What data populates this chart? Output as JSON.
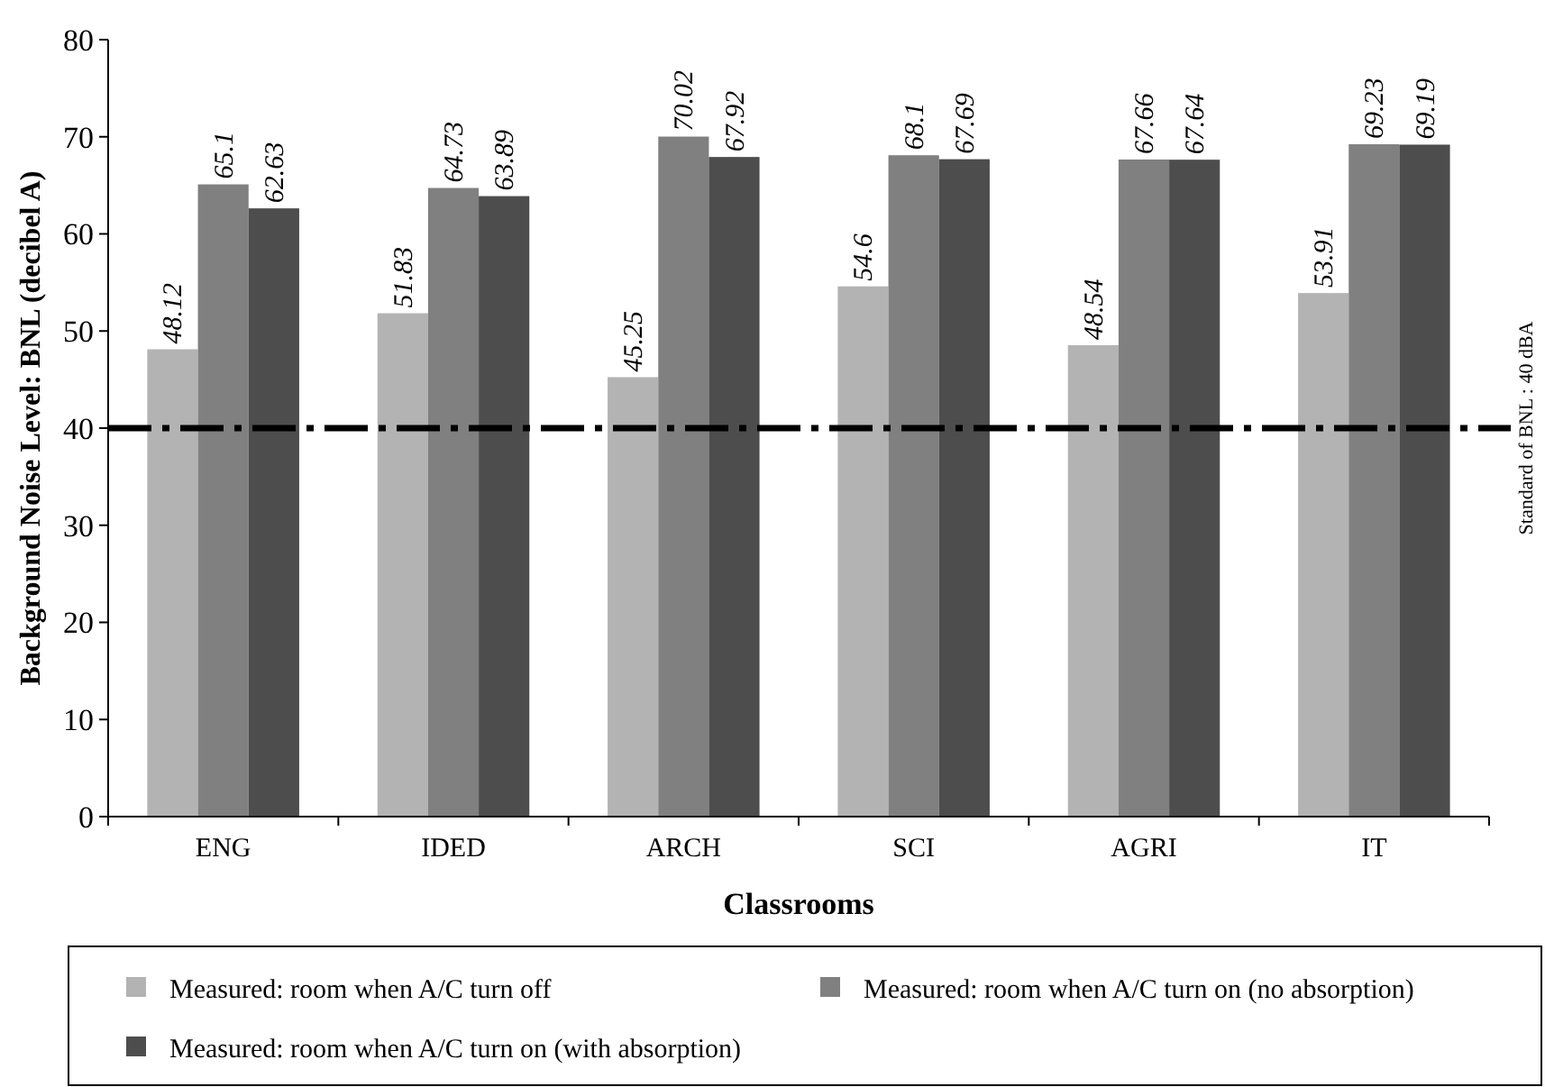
{
  "chart_data": {
    "type": "bar",
    "xlabel": "Classrooms",
    "ylabel": "Background Noise Level: BNL (decibel A)",
    "categories": [
      "ENG",
      "IDED",
      "ARCH",
      "SCI",
      "AGRI",
      "IT"
    ],
    "series": [
      {
        "name": "Measured: room when A/C turn off",
        "color": "#b3b3b3",
        "values": [
          48.12,
          51.83,
          45.25,
          54.6,
          48.54,
          53.91
        ]
      },
      {
        "name": "Measured: room when A/C turn on (no absorption)",
        "color": "#808080",
        "values": [
          65.1,
          64.73,
          70.02,
          68.1,
          67.66,
          69.23
        ]
      },
      {
        "name": "Measured: room when A/C turn on (with absorption)",
        "color": "#4d4d4d",
        "values": [
          62.63,
          63.89,
          67.92,
          67.69,
          67.64,
          69.19
        ]
      }
    ],
    "ylim": [
      0,
      80
    ],
    "yticks": [
      0,
      10,
      20,
      30,
      40,
      50,
      60,
      70,
      80
    ],
    "grid": false,
    "legend": "bottom",
    "data_labels": true,
    "ref_lines": [
      {
        "axis": "y",
        "value": 40,
        "label": "Standard of BNL : 40 dBA",
        "color": "#000000",
        "line_style": "dashdot"
      }
    ]
  }
}
